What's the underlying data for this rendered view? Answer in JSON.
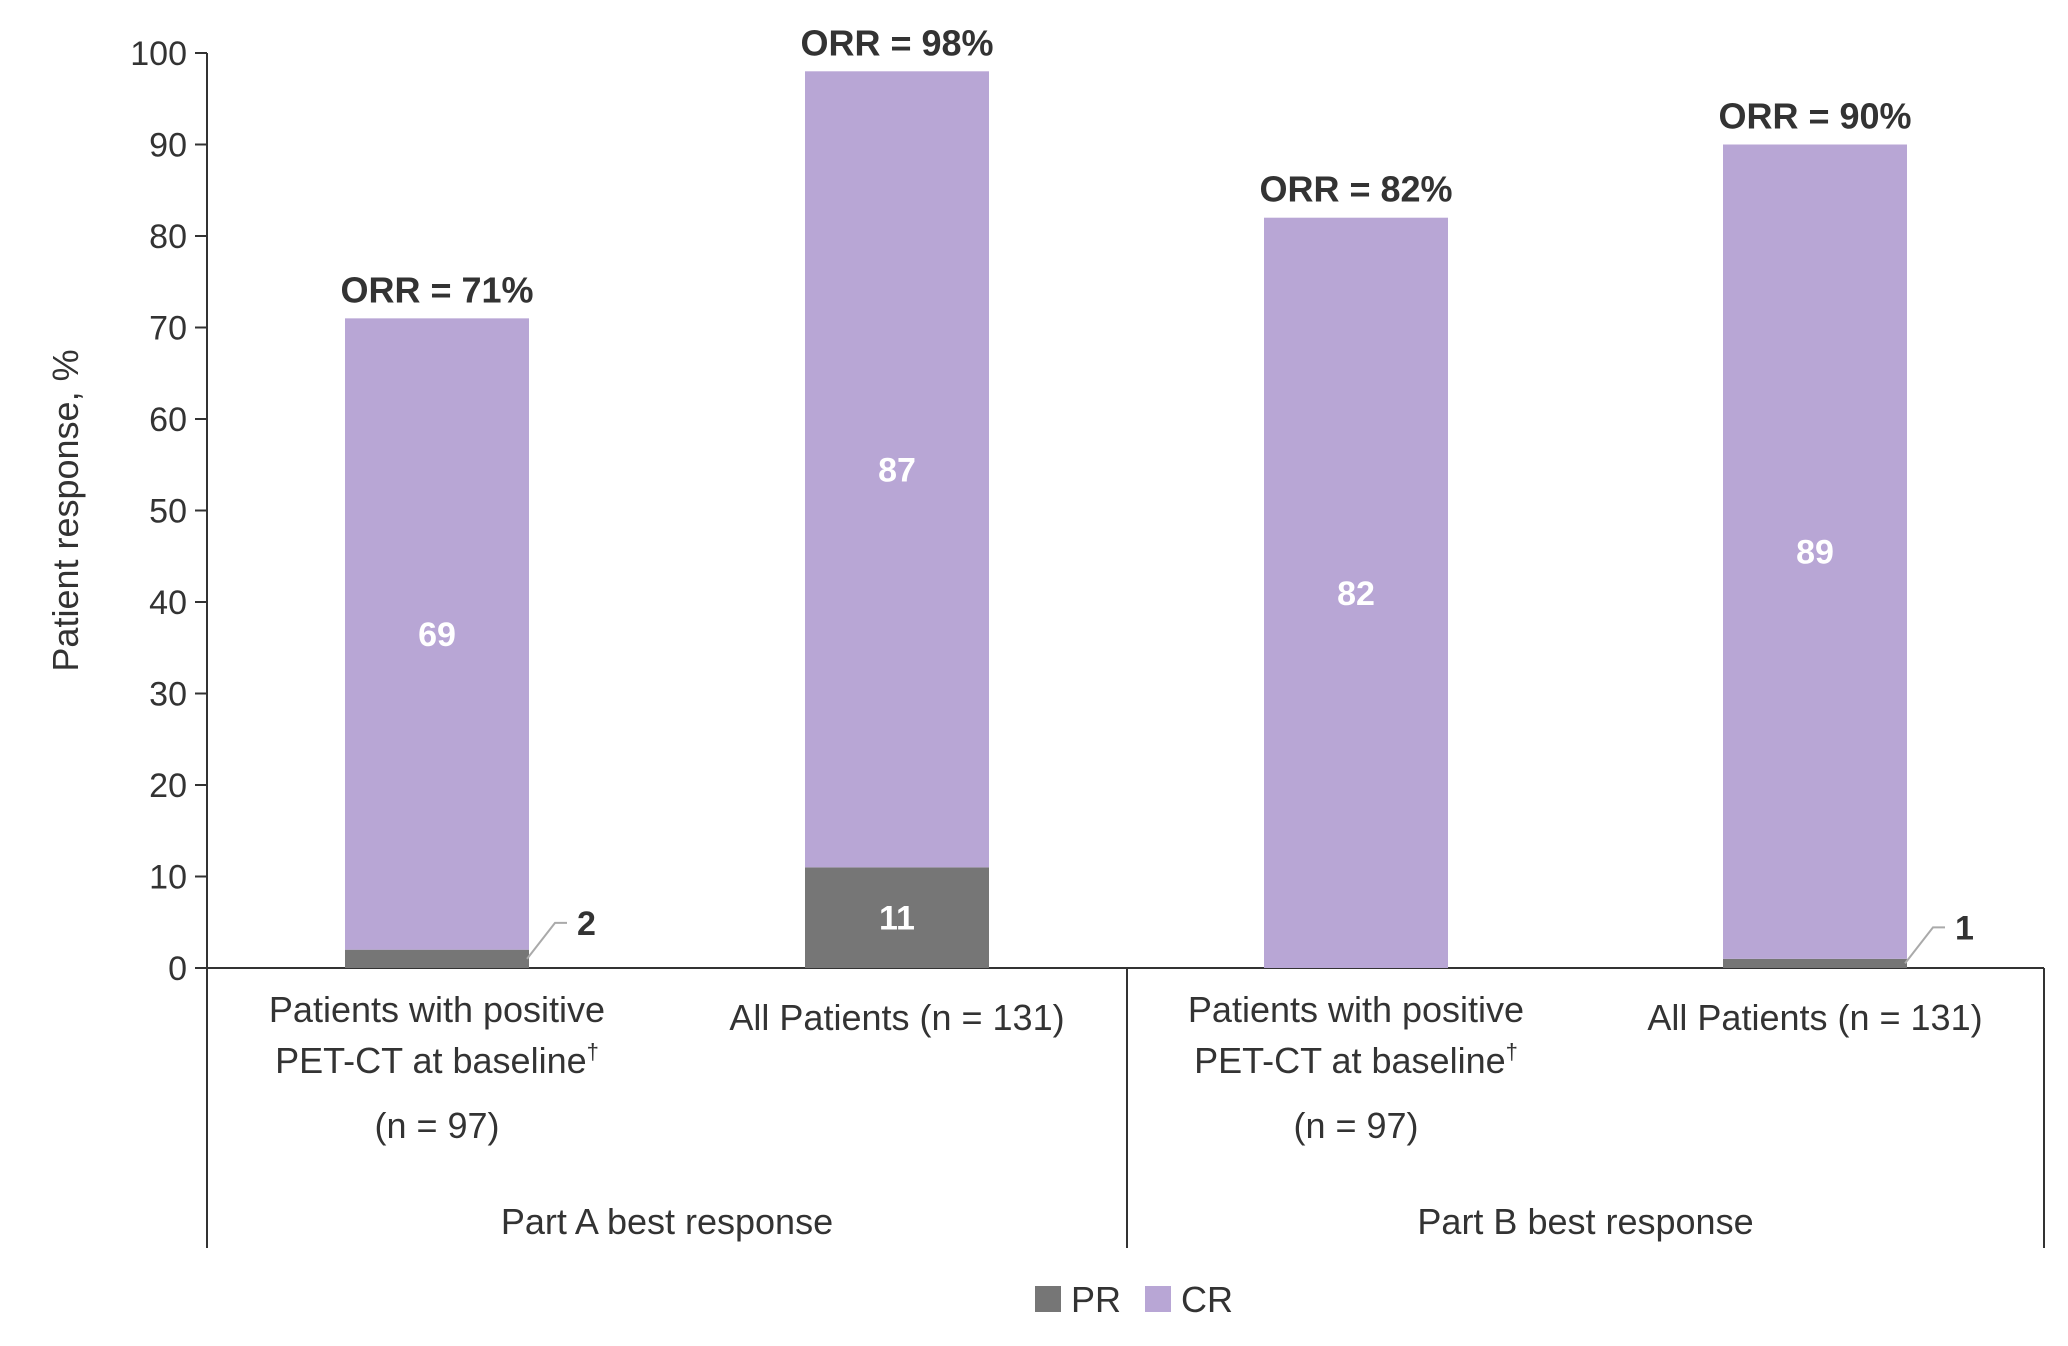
{
  "chart_data": {
    "type": "bar",
    "stacked": true,
    "ylabel": "Patient response, %",
    "ylim": [
      0,
      100
    ],
    "yticks": [
      0,
      10,
      20,
      30,
      40,
      50,
      60,
      70,
      80,
      90,
      100
    ],
    "grid": false,
    "legend_position": "bottom-center",
    "categories": [
      {
        "lines": [
          "Patients with positive",
          "PET-CT at baseline",
          "(n = 97)"
        ],
        "sup_on_line": 1,
        "sup": "†",
        "group": 0
      },
      {
        "lines": [
          "All Patients (n = 131)"
        ],
        "group": 0
      },
      {
        "lines": [
          "Patients with positive",
          "PET-CT at baseline",
          "(n = 97)"
        ],
        "sup_on_line": 1,
        "sup": "†",
        "group": 1
      },
      {
        "lines": [
          "All Patients (n = 131)"
        ],
        "group": 1
      }
    ],
    "groups": [
      "Part A best response",
      "Part B best response"
    ],
    "series": [
      {
        "name": "PR",
        "color": "#767676",
        "values": [
          2,
          11,
          0,
          1
        ],
        "labels": [
          "2",
          "11",
          "",
          "1"
        ]
      },
      {
        "name": "CR",
        "color": "#b8a6d5",
        "values": [
          69,
          87,
          82,
          89
        ],
        "labels": [
          "69",
          "87",
          "82",
          "89"
        ]
      }
    ],
    "totals": [
      "ORR = 71%",
      "ORR = 98%",
      "ORR = 82%",
      "ORR = 90%"
    ]
  }
}
